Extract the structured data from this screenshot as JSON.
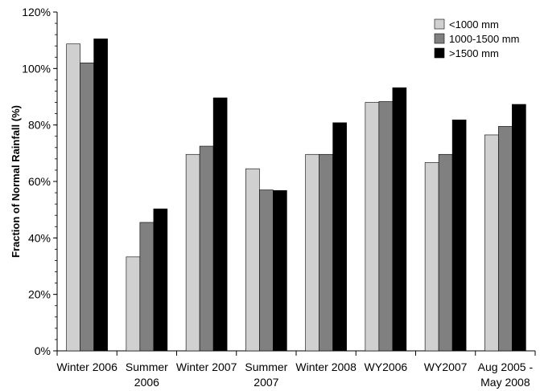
{
  "chart_data": {
    "type": "bar",
    "title": "",
    "xlabel": "",
    "ylabel": "Fraction of Normal Rainfall (%)",
    "ylim": [
      0,
      120
    ],
    "yticks": [
      "0%",
      "20%",
      "40%",
      "60%",
      "80%",
      "100%",
      "120%"
    ],
    "categories": [
      [
        "Winter 2006"
      ],
      [
        "Summer",
        "2006"
      ],
      [
        "Winter 2007"
      ],
      [
        "Summer",
        "2007"
      ],
      [
        "Winter 2008"
      ],
      [
        "WY2006"
      ],
      [
        "WY2007"
      ],
      [
        "Aug 2005 -",
        "May 2008"
      ]
    ],
    "series": [
      {
        "name": "<1000 mm",
        "color": "#d0d0d0",
        "values": [
          108.7,
          33.3,
          69.6,
          64.5,
          69.6,
          88.0,
          66.7,
          76.5
        ]
      },
      {
        "name": "1000-1500 mm",
        "color": "#808080",
        "values": [
          102.0,
          45.5,
          72.5,
          57.0,
          69.6,
          88.3,
          69.6,
          79.5
        ]
      },
      {
        "name": ">1500 mm",
        "color": "#000000",
        "values": [
          110.5,
          50.3,
          89.6,
          56.8,
          80.8,
          93.2,
          81.8,
          87.3
        ]
      }
    ],
    "legend": "top-right",
    "grid": false
  }
}
